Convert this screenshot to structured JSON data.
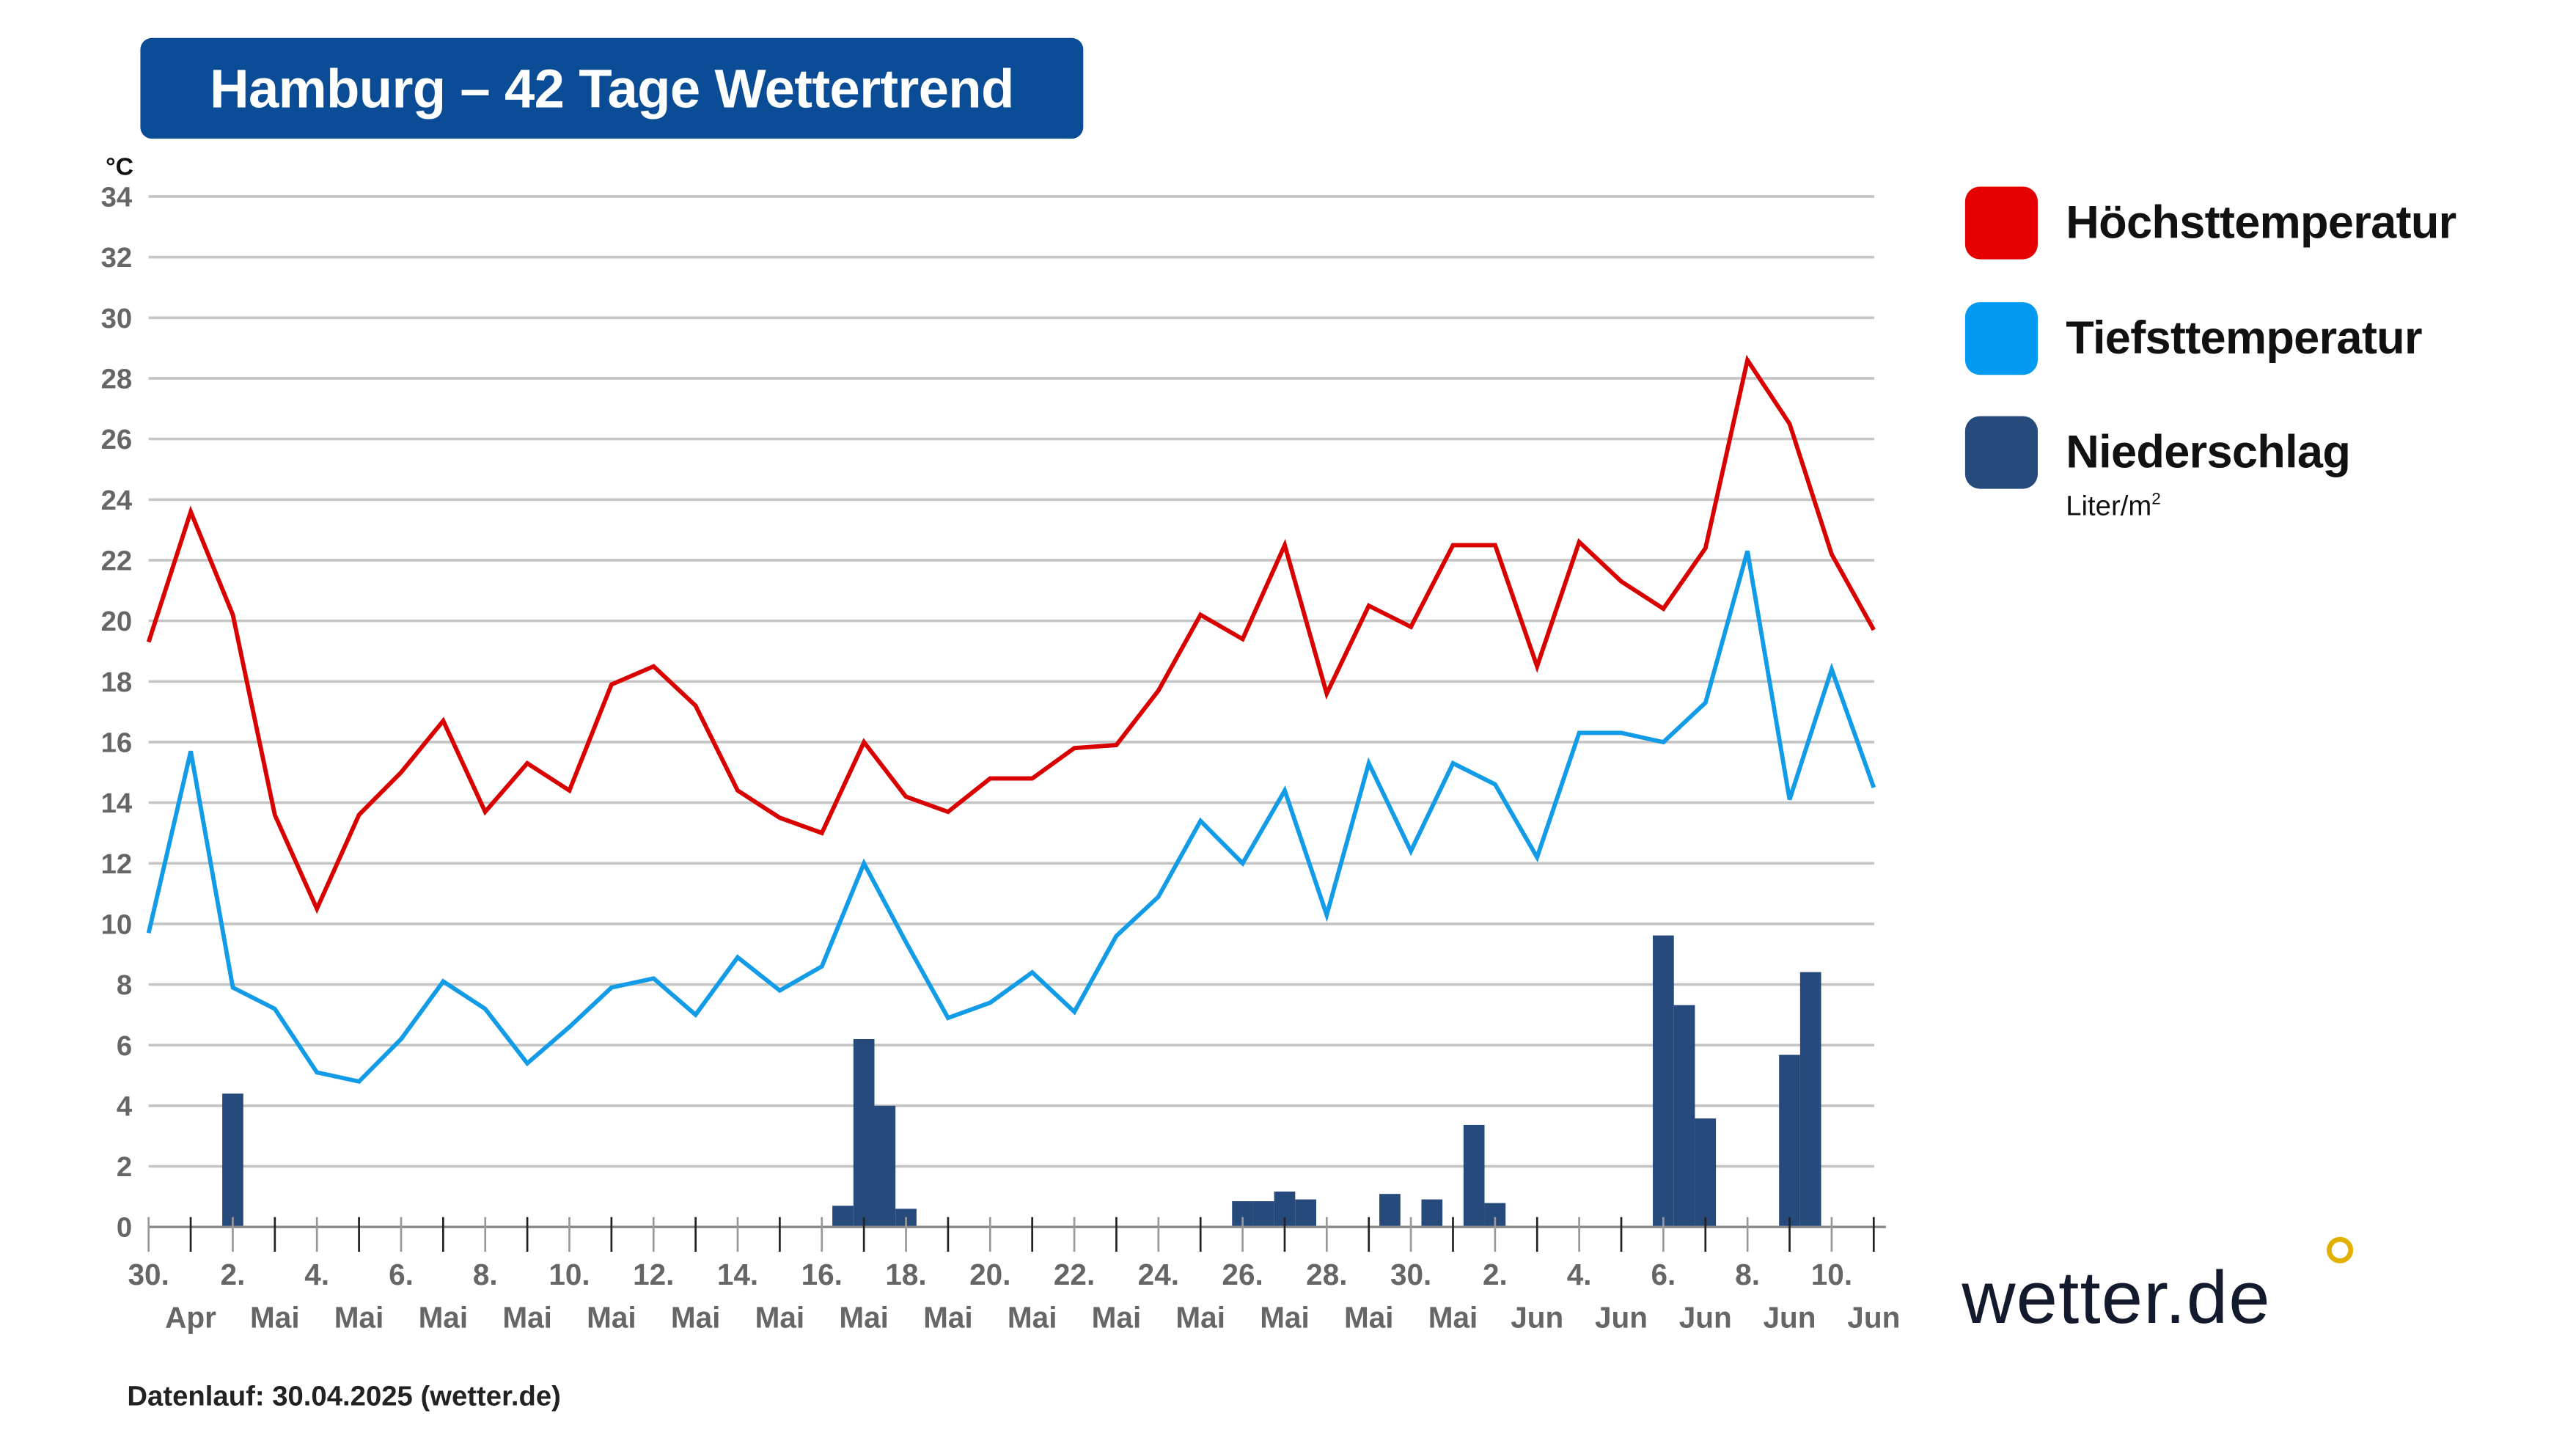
{
  "header": {
    "title": "Hamburg – 42 Tage Wettertrend"
  },
  "footer": {
    "data_run": "Datenlauf: 30.04.2025 (wetter.de)"
  },
  "logo": {
    "text": "wetter.de",
    "dot_color": "#e2b100"
  },
  "legend": {
    "items": [
      {
        "label": "Höchsttemperatur",
        "color": "#e60000"
      },
      {
        "label": "Tiefsttemperatur",
        "color": "#0299f2"
      },
      {
        "label": "Niederschlag",
        "color": "#274a7c"
      }
    ],
    "precip_unit": "Liter/m",
    "precip_unit_sup": "2"
  },
  "chart_data": {
    "type": "line",
    "title": "Hamburg – 42 Tage Wettertrend",
    "ylabel": "°C",
    "ylim": [
      0,
      34
    ],
    "yticks": [
      0,
      2,
      4,
      6,
      8,
      10,
      12,
      14,
      16,
      18,
      20,
      22,
      24,
      26,
      28,
      30,
      32,
      34
    ],
    "grid": true,
    "legend_position": "right",
    "x_day_labels": [
      "30.",
      "2.",
      "4.",
      "6.",
      "8.",
      "10.",
      "12.",
      "14.",
      "16.",
      "18.",
      "20.",
      "22.",
      "24.",
      "26.",
      "28.",
      "30.",
      "2.",
      "4.",
      "6.",
      "8.",
      "10."
    ],
    "x_month_labels": [
      "Apr",
      "Mai",
      "Mai",
      "Mai",
      "Mai",
      "Mai",
      "Mai",
      "Mai",
      "Mai",
      "Mai",
      "Mai",
      "Mai",
      "Mai",
      "Mai",
      "Mai",
      "Mai",
      "Jun",
      "Jun",
      "Jun",
      "Jun",
      "Jun"
    ],
    "series": [
      {
        "name": "Höchsttemperatur",
        "color": "#d90000",
        "type": "line",
        "values": [
          19.3,
          23.6,
          20.2,
          13.6,
          10.5,
          13.6,
          15.0,
          16.7,
          13.7,
          15.3,
          14.4,
          17.9,
          18.5,
          17.2,
          14.4,
          13.5,
          13.0,
          16.0,
          14.2,
          13.7,
          14.8,
          14.8,
          15.8,
          15.9,
          17.7,
          20.2,
          19.4,
          22.5,
          17.6,
          20.5,
          19.8,
          22.5,
          22.5,
          18.5,
          22.6,
          21.3,
          20.4,
          22.4,
          28.6,
          26.5,
          22.2,
          19.7
        ]
      },
      {
        "name": "Tiefsttemperatur",
        "color": "#129be6",
        "type": "line",
        "values": [
          9.7,
          15.7,
          7.9,
          7.2,
          5.1,
          4.8,
          6.2,
          8.1,
          7.2,
          5.4,
          6.6,
          7.9,
          8.2,
          7.0,
          8.9,
          7.8,
          8.6,
          12.0,
          9.4,
          6.9,
          7.4,
          8.4,
          7.1,
          9.6,
          10.9,
          13.4,
          12.0,
          14.4,
          10.3,
          15.3,
          12.4,
          15.3,
          14.6,
          12.2,
          16.3,
          16.3,
          16.0,
          17.3,
          22.3,
          14.1,
          18.4,
          14.5
        ]
      },
      {
        "name": "Niederschlag",
        "color": "#274a7c",
        "type": "bar",
        "unit": "Liter/m²",
        "resolution": "12h",
        "values": [
          0,
          0,
          0,
          0,
          4.4,
          0,
          0,
          0,
          0,
          0,
          0,
          0,
          0,
          0,
          0,
          0,
          0,
          0,
          0,
          0,
          0,
          0,
          0,
          0,
          0,
          0,
          0,
          0,
          0,
          0,
          0,
          0,
          0,
          0.7,
          6.2,
          4.0,
          0.6,
          0,
          0,
          0,
          0,
          0,
          0,
          0,
          0,
          0,
          0,
          0,
          0,
          0,
          0,
          0,
          0.85,
          0.85,
          1.17,
          0.91,
          0,
          0,
          0,
          1.09,
          0,
          0.91,
          0,
          3.37,
          0.79,
          0,
          0,
          0,
          0,
          0,
          0,
          0,
          9.62,
          7.32,
          3.58,
          0,
          0,
          0,
          5.68,
          8.41,
          0,
          0,
          0,
          0
        ]
      }
    ]
  }
}
